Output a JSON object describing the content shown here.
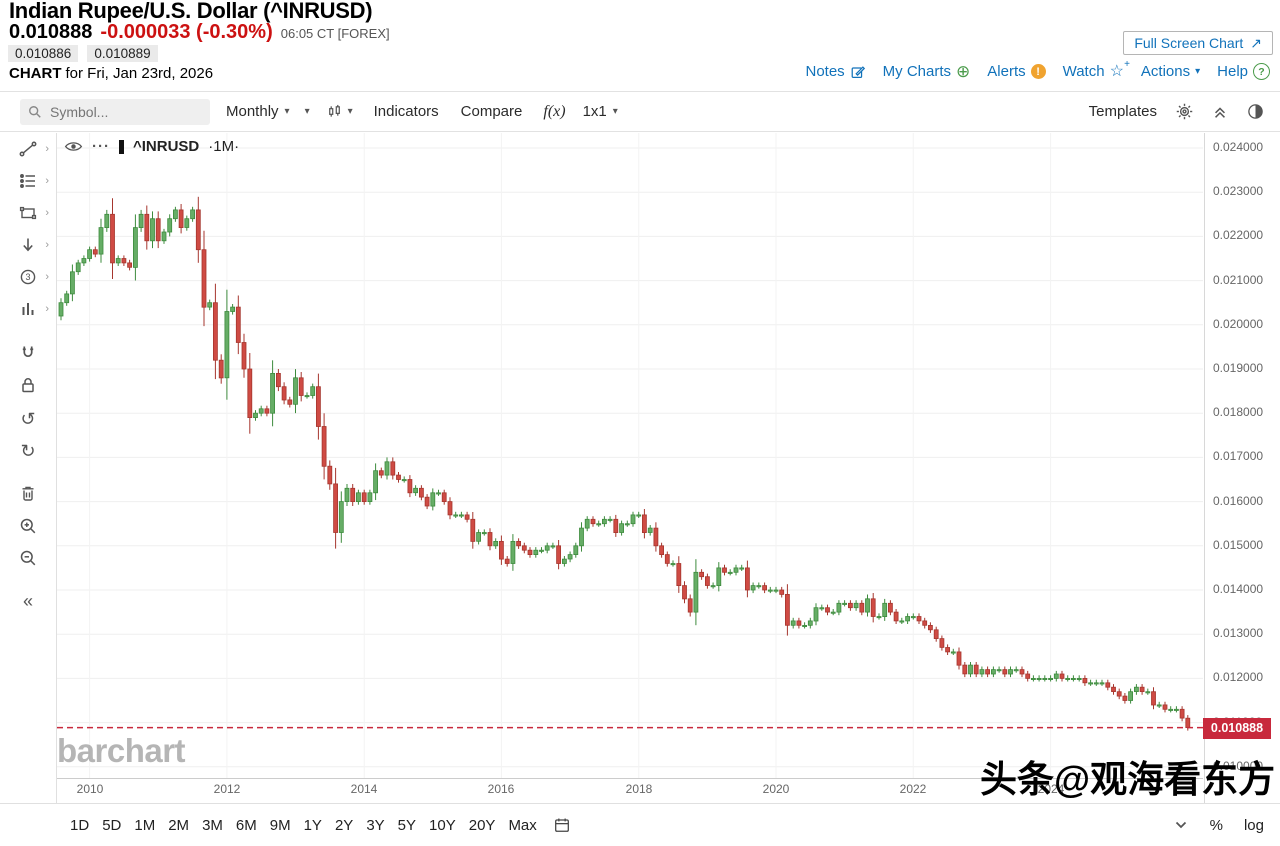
{
  "header": {
    "title": "Indian Rupee/U.S. Dollar (^INRUSD)",
    "last_price": "0.010888",
    "change": "-0.000033 (-0.30%)",
    "quote_time": "06:05 CT [FOREX]",
    "bid": "0.010886",
    "ask": "0.010889",
    "chart_for_label": "CHART",
    "chart_for_date": "for Fri, Jan 23rd, 2026",
    "full_screen_label": "Full Screen Chart",
    "links": {
      "notes": "Notes",
      "my_charts": "My Charts",
      "alerts": "Alerts",
      "watch": "Watch",
      "actions": "Actions",
      "help": "Help"
    }
  },
  "toolbar": {
    "symbol_placeholder": "Symbol...",
    "period": "Monthly",
    "indicators": "Indicators",
    "compare": "Compare",
    "fx": "f(x)",
    "grid_layout": "1x1",
    "templates": "Templates"
  },
  "chart": {
    "series_label": "^INRUSD",
    "interval_label": "·1M·",
    "watermark": "barchart",
    "price_label": "0.010888",
    "scale_percent": "%",
    "scale_log": "log"
  },
  "range_toolbar": [
    "1D",
    "5D",
    "1M",
    "2M",
    "3M",
    "6M",
    "9M",
    "1Y",
    "2Y",
    "3Y",
    "5Y",
    "10Y",
    "20Y",
    "Max"
  ],
  "overlay_watermark": "头条@观海看东方",
  "colors": {
    "link": "#1172ba",
    "negative": "#cc1111",
    "candle_up_fill": "#66ad66",
    "candle_up_border": "#3d8b3d",
    "candle_down_fill": "#cf4b44",
    "candle_down_border": "#a6362e",
    "price_line": "#c8293c"
  },
  "chart_data": {
    "type": "candlestick",
    "title": "Indian Rupee/U.S. Dollar (^INRUSD)",
    "symbol": "^INRUSD",
    "interval": "monthly",
    "start_month": "2009-08",
    "open_rule": "previous_close",
    "last_price": 0.010888,
    "price_line": 0.010888,
    "ylim": [
      0.0096,
      0.0243
    ],
    "y_ticks": [
      0.024,
      0.023,
      0.022,
      0.021,
      0.02,
      0.019,
      0.018,
      0.017,
      0.016,
      0.015,
      0.014,
      0.013,
      0.012,
      0.011,
      0.01
    ],
    "x_tick_years": [
      2010,
      2012,
      2014,
      2016,
      2018,
      2020,
      2022,
      2024
    ],
    "closes": [
      0.0205,
      0.0207,
      0.0212,
      0.0214,
      0.0215,
      0.0217,
      0.0216,
      0.0222,
      0.0225,
      0.0214,
      0.0215,
      0.0214,
      0.0213,
      0.0222,
      0.0225,
      0.0219,
      0.0224,
      0.0219,
      0.0221,
      0.0224,
      0.0226,
      0.0222,
      0.0224,
      0.0226,
      0.0217,
      0.0204,
      0.0205,
      0.0192,
      0.0188,
      0.0203,
      0.0204,
      0.0196,
      0.019,
      0.0179,
      0.018,
      0.0181,
      0.018,
      0.0189,
      0.0186,
      0.0183,
      0.0182,
      0.0188,
      0.0184,
      0.0184,
      0.0186,
      0.0177,
      0.0168,
      0.0164,
      0.0153,
      0.016,
      0.0163,
      0.016,
      0.0162,
      0.016,
      0.0162,
      0.0167,
      0.0166,
      0.0169,
      0.0166,
      0.0165,
      0.0165,
      0.0162,
      0.0163,
      0.0161,
      0.0159,
      0.0162,
      0.0162,
      0.016,
      0.0157,
      0.0157,
      0.0157,
      0.0156,
      0.0151,
      0.0153,
      0.0153,
      0.015,
      0.0151,
      0.0147,
      0.0146,
      0.0151,
      0.015,
      0.0149,
      0.0148,
      0.0149,
      0.0149,
      0.015,
      0.015,
      0.0146,
      0.0147,
      0.0148,
      0.015,
      0.0154,
      0.0156,
      0.0155,
      0.0155,
      0.0156,
      0.0156,
      0.0153,
      0.0155,
      0.0155,
      0.0157,
      0.0157,
      0.0153,
      0.0154,
      0.015,
      0.0148,
      0.0146,
      0.0146,
      0.0141,
      0.0138,
      0.0135,
      0.0144,
      0.0143,
      0.0141,
      0.0141,
      0.0145,
      0.0144,
      0.0144,
      0.0145,
      0.0145,
      0.014,
      0.0141,
      0.0141,
      0.014,
      0.014,
      0.014,
      0.0139,
      0.0132,
      0.0133,
      0.0132,
      0.0132,
      0.0133,
      0.0136,
      0.0136,
      0.0135,
      0.0135,
      0.0137,
      0.0137,
      0.0136,
      0.0137,
      0.0135,
      0.0138,
      0.0134,
      0.0134,
      0.0137,
      0.0135,
      0.0133,
      0.0133,
      0.0134,
      0.0134,
      0.0133,
      0.0132,
      0.0131,
      0.0129,
      0.0127,
      0.0126,
      0.0126,
      0.0123,
      0.0121,
      0.0123,
      0.0121,
      0.0122,
      0.0121,
      0.0122,
      0.0122,
      0.0121,
      0.0122,
      0.0122,
      0.0121,
      0.012,
      0.012,
      0.012,
      0.012,
      0.012,
      0.0121,
      0.012,
      0.012,
      0.012,
      0.012,
      0.0119,
      0.0119,
      0.0119,
      0.0119,
      0.0118,
      0.0117,
      0.0116,
      0.0115,
      0.0117,
      0.0118,
      0.0117,
      0.0117,
      0.0114,
      0.0114,
      0.0113,
      0.0113,
      0.0113,
      0.0111,
      0.010888
    ]
  }
}
